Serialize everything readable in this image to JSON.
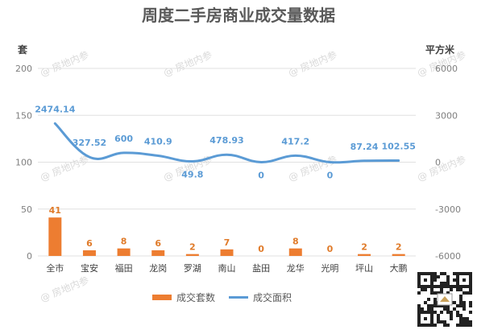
{
  "title": "周度二手房商业成交量数据",
  "left_unit": "套",
  "right_unit": "平方米",
  "watermark": "房地内参",
  "colors": {
    "bar": "#ed7d31",
    "line": "#5b9bd5",
    "grid": "#e0e0e0"
  },
  "chart_data": {
    "type": "bar+line",
    "categories": [
      "全市",
      "宝安",
      "福田",
      "龙岗",
      "罗湖",
      "南山",
      "盐田",
      "龙华",
      "光明",
      "坪山",
      "大鹏"
    ],
    "series": [
      {
        "name": "成交套数",
        "type": "bar",
        "axis": "left",
        "values": [
          41,
          6,
          8,
          6,
          2,
          7,
          0,
          8,
          0,
          2,
          2
        ]
      },
      {
        "name": "成交面积",
        "type": "line",
        "axis": "right",
        "values": [
          2474.14,
          327.52,
          600,
          410.9,
          49.8,
          478.93,
          0,
          417.2,
          0,
          87.24,
          102.55
        ]
      }
    ],
    "left_axis": {
      "min": 0,
      "max": 200,
      "ticks": [
        0,
        50,
        100,
        150,
        200
      ]
    },
    "right_axis": {
      "min": -6000,
      "max": 6000,
      "ticks": [
        -6000,
        -3000,
        0,
        3000,
        6000
      ]
    },
    "grid": true,
    "legend": "bottom"
  }
}
